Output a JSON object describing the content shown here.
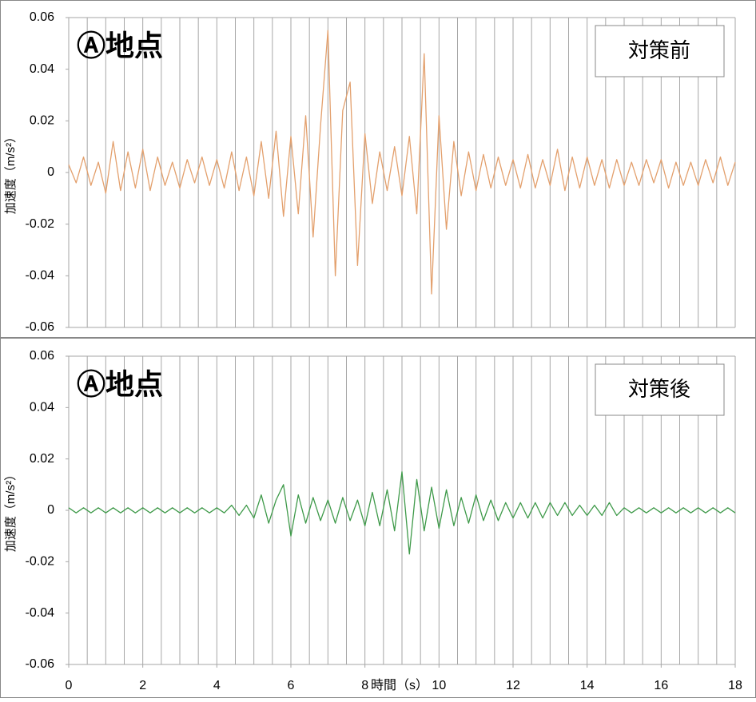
{
  "chart_data": [
    {
      "type": "line",
      "annotation": "Ⓐ地点",
      "label": "対策前",
      "ylabel": "加速度（m/s²）",
      "color": "#e3a06d",
      "xlim": [
        0,
        18
      ],
      "x_grid_step": 0.5,
      "ylim": [
        -0.06,
        0.06
      ],
      "yticks": [
        0.06,
        0.04,
        0.02,
        0,
        -0.02,
        -0.04,
        -0.06
      ],
      "grid": "x",
      "x": [
        0,
        0.2,
        0.4,
        0.6,
        0.8,
        1,
        1.2,
        1.4,
        1.6,
        1.8,
        2,
        2.2,
        2.4,
        2.6,
        2.8,
        3,
        3.2,
        3.4,
        3.6,
        3.8,
        4,
        4.2,
        4.4,
        4.6,
        4.8,
        5,
        5.2,
        5.4,
        5.6,
        5.8,
        6,
        6.2,
        6.4,
        6.6,
        6.8,
        7,
        7.2,
        7.4,
        7.6,
        7.8,
        8,
        8.2,
        8.4,
        8.6,
        8.8,
        9,
        9.2,
        9.4,
        9.6,
        9.8,
        10,
        10.2,
        10.4,
        10.6,
        10.8,
        11,
        11.2,
        11.4,
        11.6,
        11.8,
        12,
        12.2,
        12.4,
        12.6,
        12.8,
        13,
        13.2,
        13.4,
        13.6,
        13.8,
        14,
        14.2,
        14.4,
        14.6,
        14.8,
        15,
        15.2,
        15.4,
        15.6,
        15.8,
        16,
        16.2,
        16.4,
        16.6,
        16.8,
        17,
        17.2,
        17.4,
        17.6,
        17.8,
        18
      ],
      "values": [
        0.003,
        -0.004,
        0.006,
        -0.005,
        0.004,
        -0.008,
        0.012,
        -0.007,
        0.008,
        -0.006,
        0.009,
        -0.007,
        0.006,
        -0.005,
        0.004,
        -0.006,
        0.005,
        -0.004,
        0.006,
        -0.005,
        0.005,
        -0.006,
        0.008,
        -0.007,
        0.006,
        -0.009,
        0.012,
        -0.01,
        0.016,
        -0.017,
        0.014,
        -0.016,
        0.022,
        -0.025,
        0.018,
        0.055,
        -0.04,
        0.024,
        0.035,
        -0.036,
        0.015,
        -0.012,
        0.008,
        -0.007,
        0.01,
        -0.009,
        0.014,
        -0.016,
        0.046,
        -0.047,
        0.022,
        -0.022,
        0.012,
        -0.009,
        0.008,
        -0.007,
        0.007,
        -0.006,
        0.006,
        -0.005,
        0.005,
        -0.006,
        0.007,
        -0.006,
        0.005,
        -0.005,
        0.009,
        -0.007,
        0.006,
        -0.006,
        0.006,
        -0.005,
        0.005,
        -0.006,
        0.005,
        -0.005,
        0.004,
        -0.005,
        0.005,
        -0.004,
        0.005,
        -0.006,
        0.004,
        -0.005,
        0.004,
        -0.005,
        0.005,
        -0.004,
        0.006,
        -0.005,
        0.004
      ]
    },
    {
      "type": "line",
      "annotation": "Ⓐ地点",
      "label": "対策後",
      "ylabel": "加速度（m/s²）",
      "xlabel": "時間（s）",
      "color": "#3f9a4a",
      "xlim": [
        0,
        18
      ],
      "xticks": [
        0,
        2,
        4,
        6,
        8,
        10,
        12,
        14,
        16,
        18
      ],
      "x_grid_step": 0.5,
      "ylim": [
        -0.06,
        0.06
      ],
      "yticks": [
        0.06,
        0.04,
        0.02,
        0,
        -0.02,
        -0.04,
        -0.06
      ],
      "grid": "x",
      "x": [
        0,
        0.2,
        0.4,
        0.6,
        0.8,
        1,
        1.2,
        1.4,
        1.6,
        1.8,
        2,
        2.2,
        2.4,
        2.6,
        2.8,
        3,
        3.2,
        3.4,
        3.6,
        3.8,
        4,
        4.2,
        4.4,
        4.6,
        4.8,
        5,
        5.2,
        5.4,
        5.6,
        5.8,
        6,
        6.2,
        6.4,
        6.6,
        6.8,
        7,
        7.2,
        7.4,
        7.6,
        7.8,
        8,
        8.2,
        8.4,
        8.6,
        8.8,
        9,
        9.2,
        9.4,
        9.6,
        9.8,
        10,
        10.2,
        10.4,
        10.6,
        10.8,
        11,
        11.2,
        11.4,
        11.6,
        11.8,
        12,
        12.2,
        12.4,
        12.6,
        12.8,
        13,
        13.2,
        13.4,
        13.6,
        13.8,
        14,
        14.2,
        14.4,
        14.6,
        14.8,
        15,
        15.2,
        15.4,
        15.6,
        15.8,
        16,
        16.2,
        16.4,
        16.6,
        16.8,
        17,
        17.2,
        17.4,
        17.6,
        17.8,
        18
      ],
      "values": [
        0.001,
        -0.001,
        0.001,
        -0.001,
        0.001,
        -0.001,
        0.001,
        -0.001,
        0.001,
        -0.001,
        0.001,
        -0.001,
        0.001,
        -0.001,
        0.001,
        -0.001,
        0.001,
        -0.001,
        0.001,
        -0.001,
        0.001,
        -0.001,
        0.002,
        -0.002,
        0.002,
        -0.003,
        0.006,
        -0.005,
        0.004,
        0.01,
        -0.01,
        0.006,
        -0.005,
        0.005,
        -0.004,
        0.004,
        -0.005,
        0.005,
        -0.004,
        0.004,
        -0.006,
        0.007,
        -0.006,
        0.008,
        -0.008,
        0.015,
        -0.017,
        0.012,
        -0.008,
        0.009,
        -0.007,
        0.008,
        -0.006,
        0.005,
        -0.005,
        0.006,
        -0.004,
        0.004,
        -0.004,
        0.003,
        -0.003,
        0.003,
        -0.003,
        0.003,
        -0.003,
        0.003,
        -0.002,
        0.003,
        -0.002,
        0.002,
        -0.002,
        0.002,
        -0.002,
        0.003,
        -0.002,
        0.001,
        -0.001,
        0.001,
        -0.001,
        0.001,
        -0.001,
        0.001,
        -0.001,
        0.001,
        -0.001,
        0.001,
        -0.001,
        0.001,
        -0.001,
        0.001,
        -0.001
      ]
    }
  ]
}
